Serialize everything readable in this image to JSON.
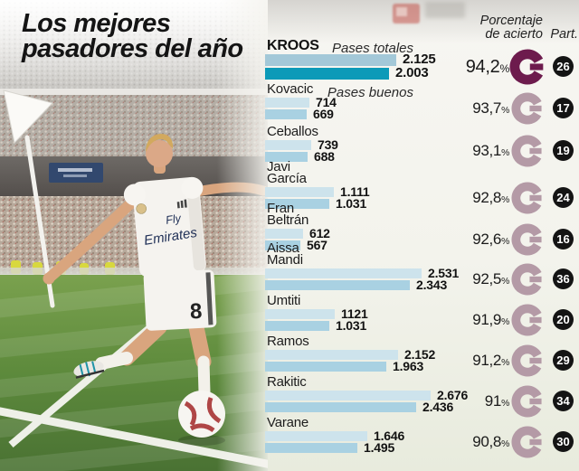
{
  "title": {
    "line1": "Los mejores",
    "line2": "pasadores del año"
  },
  "header": {
    "pct_line1": "Porcentaje",
    "pct_line2": "de acierto",
    "part": "Part."
  },
  "legend": {
    "total": "Pases totales",
    "good": "Pases buenos"
  },
  "photo": {
    "jersey_line1": "Fly",
    "jersey_line2": "Emirates",
    "shorts_number": "8"
  },
  "colors": {
    "bar_total": "#cde3ec",
    "bar_good": "#a9d1e2",
    "kroos_bar_total": "#a3c8d8",
    "kroos_bar_good": "#0c9ab8",
    "donut": "#b49aa6",
    "donut_highlight": "#6d1b4d",
    "badge_bg": "#141414",
    "badge_text": "#ffffff"
  },
  "chart_data": {
    "type": "bar",
    "orientation": "horizontal",
    "title": "Los mejores pasadores del año",
    "series_names": [
      "Pases totales",
      "Pases buenos"
    ],
    "max_value": 2676,
    "pct_suffix": "%",
    "players": [
      {
        "name": "KROOS",
        "name_lines": [
          "KROOS"
        ],
        "total": 2125,
        "good": 2003,
        "total_label": "2.125",
        "good_label": "2.003",
        "accuracy_pct": 94.2,
        "accuracy_label": "94,2",
        "participation": "26",
        "highlight": true
      },
      {
        "name": "Kovacic",
        "name_lines": [
          "Kovacic"
        ],
        "total": 714,
        "good": 669,
        "total_label": "714",
        "good_label": "669",
        "accuracy_pct": 93.7,
        "accuracy_label": "93,7",
        "participation": "17",
        "highlight": false
      },
      {
        "name": "Ceballos",
        "name_lines": [
          "Ceballos"
        ],
        "total": 739,
        "good": 688,
        "total_label": "739",
        "good_label": "688",
        "accuracy_pct": 93.1,
        "accuracy_label": "93,1",
        "participation": "19",
        "highlight": false
      },
      {
        "name": "Javi García",
        "name_lines": [
          "Javi",
          "García"
        ],
        "total": 1111,
        "good": 1031,
        "total_label": "1.111",
        "good_label": "1.031",
        "accuracy_pct": 92.8,
        "accuracy_label": "92,8",
        "participation": "24",
        "highlight": false
      },
      {
        "name": "Fran Beltrán",
        "name_lines": [
          "Fran",
          "Beltrán"
        ],
        "total": 612,
        "good": 567,
        "total_label": "612",
        "good_label": "567",
        "accuracy_pct": 92.6,
        "accuracy_label": "92,6",
        "participation": "16",
        "highlight": false
      },
      {
        "name": "Aissa Mandi",
        "name_lines": [
          "Aissa",
          "Mandi"
        ],
        "total": 2531,
        "good": 2343,
        "total_label": "2.531",
        "good_label": "2.343",
        "accuracy_pct": 92.5,
        "accuracy_label": "92,5",
        "participation": "36",
        "highlight": false
      },
      {
        "name": "Umtiti",
        "name_lines": [
          "Umtiti"
        ],
        "total": 1121,
        "good": 1031,
        "total_label": "1121",
        "good_label": "1.031",
        "accuracy_pct": 91.9,
        "accuracy_label": "91,9",
        "participation": "20",
        "highlight": false
      },
      {
        "name": "Ramos",
        "name_lines": [
          "Ramos"
        ],
        "total": 2152,
        "good": 1963,
        "total_label": "2.152",
        "good_label": "1.963",
        "accuracy_pct": 91.2,
        "accuracy_label": "91,2",
        "participation": "29",
        "highlight": false
      },
      {
        "name": "Rakitic",
        "name_lines": [
          "Rakitic"
        ],
        "total": 2676,
        "good": 2436,
        "total_label": "2.676",
        "good_label": "2.436",
        "accuracy_pct": 91.0,
        "accuracy_label": "91",
        "participation": "34",
        "highlight": false
      },
      {
        "name": "Varane",
        "name_lines": [
          "Varane"
        ],
        "total": 1646,
        "good": 1495,
        "total_label": "1.646",
        "good_label": "1.495",
        "accuracy_pct": 90.8,
        "accuracy_label": "90,8",
        "participation": "30",
        "highlight": false
      }
    ]
  }
}
